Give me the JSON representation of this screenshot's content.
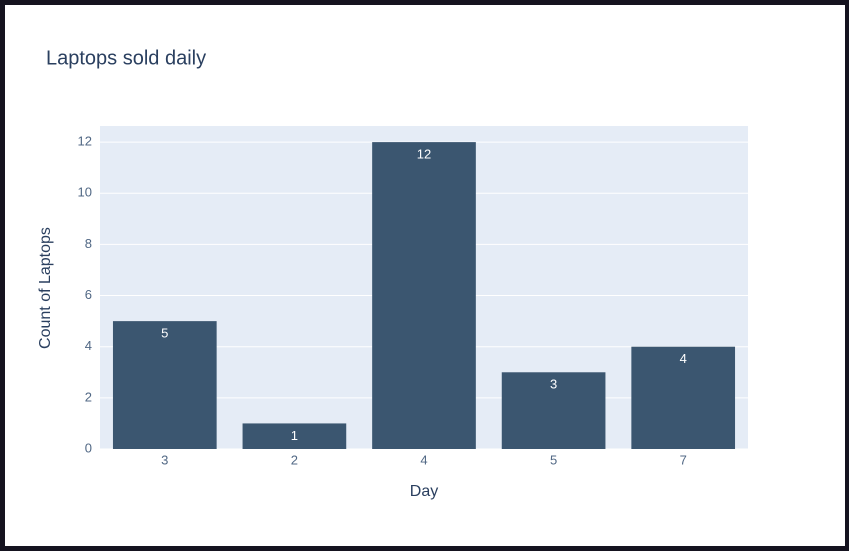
{
  "chart_data": {
    "type": "bar",
    "title": "Laptops sold daily",
    "x_label": "Day",
    "y_label": "Count of Laptops",
    "categories": [
      "3",
      "2",
      "4",
      "5",
      "7"
    ],
    "values": [
      5,
      1,
      12,
      3,
      4
    ],
    "color": "#3b5670",
    "ylim": [
      0,
      12.63
    ],
    "yticks": [
      0,
      2,
      4,
      6,
      8,
      10,
      12
    ],
    "grid": true
  }
}
